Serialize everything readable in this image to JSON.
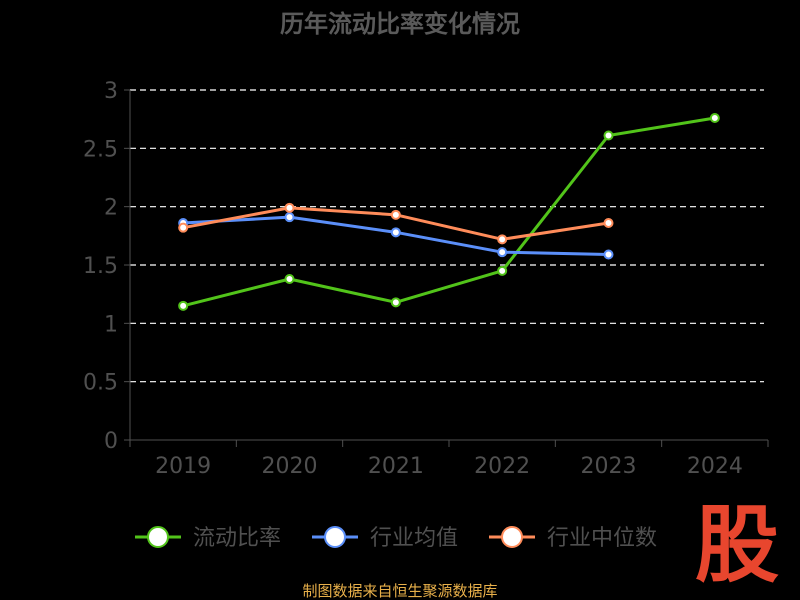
{
  "chart_data": {
    "type": "line",
    "title": "历年流动比率变化情况",
    "categories": [
      "2019",
      "2020",
      "2021",
      "2022",
      "2023",
      "2024"
    ],
    "ylim": [
      0,
      3
    ],
    "yticks": [
      "0",
      "0.5",
      "1",
      "1.5",
      "2",
      "2.5",
      "3"
    ],
    "yticks_values": [
      0,
      0.5,
      1,
      1.5,
      2,
      2.5,
      3
    ],
    "grid": true,
    "legend_position": "bottom",
    "series": [
      {
        "name": "流动比率",
        "color": "#52c41a",
        "values": [
          1.15,
          1.38,
          1.18,
          1.45,
          2.61,
          2.76
        ]
      },
      {
        "name": "行业均值",
        "color": "#5b8ff9",
        "values": [
          1.86,
          1.91,
          1.78,
          1.61,
          1.59,
          null
        ]
      },
      {
        "name": "行业中位数",
        "color": "#ff8c5a",
        "values": [
          1.82,
          1.99,
          1.93,
          1.72,
          1.86,
          null
        ]
      }
    ]
  },
  "source": "制图数据来自恒生聚源数据库",
  "logo": "股"
}
